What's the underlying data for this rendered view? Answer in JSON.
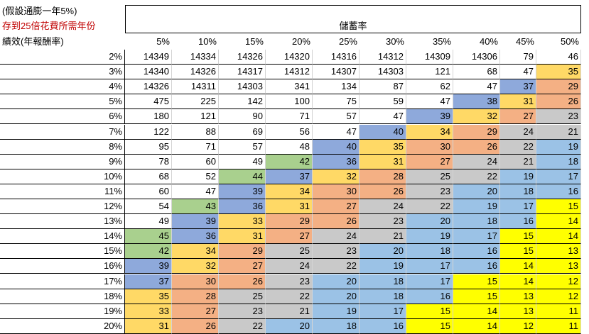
{
  "notes": {
    "line1": "(假設通膨一年5%)",
    "line2": "存到25倍花費所需年份"
  },
  "title": "儲蓄率",
  "row_header_label": "績效(年報酬率)",
  "colors": {
    "green": "#a9d08e",
    "blue": "#8ea9db",
    "orange": "#ffd966",
    "salmon": "#f4b084",
    "gray": "#c9c9c9",
    "lightblue": "#9bc2e6",
    "yellow": "#ffff00",
    "note_red": "#c00000"
  },
  "table": {
    "columns": [
      "5%",
      "10%",
      "15%",
      "20%",
      "25%",
      "30%",
      "35%",
      "40%",
      "45%",
      "50%"
    ],
    "rows": [
      {
        "label": "2%",
        "values": [
          14349,
          14334,
          14326,
          14320,
          14316,
          14312,
          14309,
          14306,
          79,
          46
        ]
      },
      {
        "label": "3%",
        "values": [
          14340,
          14326,
          14317,
          14312,
          14307,
          14303,
          121,
          68,
          47,
          35
        ]
      },
      {
        "label": "4%",
        "values": [
          14326,
          14311,
          14303,
          341,
          134,
          87,
          62,
          47,
          37,
          29
        ]
      },
      {
        "label": "5%",
        "values": [
          475,
          225,
          142,
          100,
          75,
          59,
          47,
          38,
          31,
          26
        ]
      },
      {
        "label": "6%",
        "values": [
          180,
          121,
          90,
          71,
          57,
          47,
          39,
          32,
          27,
          23
        ]
      },
      {
        "label": "7%",
        "values": [
          122,
          88,
          69,
          56,
          47,
          40,
          34,
          29,
          24,
          21
        ]
      },
      {
        "label": "8%",
        "values": [
          95,
          71,
          57,
          48,
          40,
          35,
          30,
          26,
          22,
          19
        ]
      },
      {
        "label": "9%",
        "values": [
          78,
          60,
          49,
          42,
          36,
          31,
          27,
          24,
          21,
          18
        ]
      },
      {
        "label": "10%",
        "values": [
          68,
          52,
          44,
          37,
          32,
          28,
          25,
          22,
          19,
          17
        ]
      },
      {
        "label": "11%",
        "values": [
          60,
          47,
          39,
          34,
          30,
          26,
          23,
          20,
          18,
          16
        ]
      },
      {
        "label": "12%",
        "values": [
          54,
          43,
          36,
          31,
          27,
          24,
          22,
          19,
          17,
          15
        ]
      },
      {
        "label": "13%",
        "values": [
          49,
          39,
          33,
          29,
          26,
          23,
          20,
          18,
          16,
          14
        ]
      },
      {
        "label": "14%",
        "values": [
          45,
          36,
          31,
          27,
          24,
          21,
          19,
          17,
          15,
          14
        ]
      },
      {
        "label": "15%",
        "values": [
          42,
          34,
          29,
          25,
          23,
          20,
          18,
          16,
          15,
          13
        ]
      },
      {
        "label": "16%",
        "values": [
          39,
          32,
          27,
          24,
          22,
          19,
          17,
          16,
          14,
          13
        ]
      },
      {
        "label": "17%",
        "values": [
          37,
          30,
          26,
          23,
          20,
          18,
          17,
          15,
          14,
          12
        ]
      },
      {
        "label": "18%",
        "values": [
          35,
          28,
          25,
          22,
          20,
          18,
          16,
          15,
          13,
          12
        ]
      },
      {
        "label": "19%",
        "values": [
          33,
          27,
          23,
          21,
          19,
          17,
          15,
          14,
          13,
          11
        ]
      },
      {
        "label": "20%",
        "values": [
          31,
          26,
          22,
          20,
          18,
          16,
          15,
          14,
          12,
          11
        ]
      }
    ]
  }
}
